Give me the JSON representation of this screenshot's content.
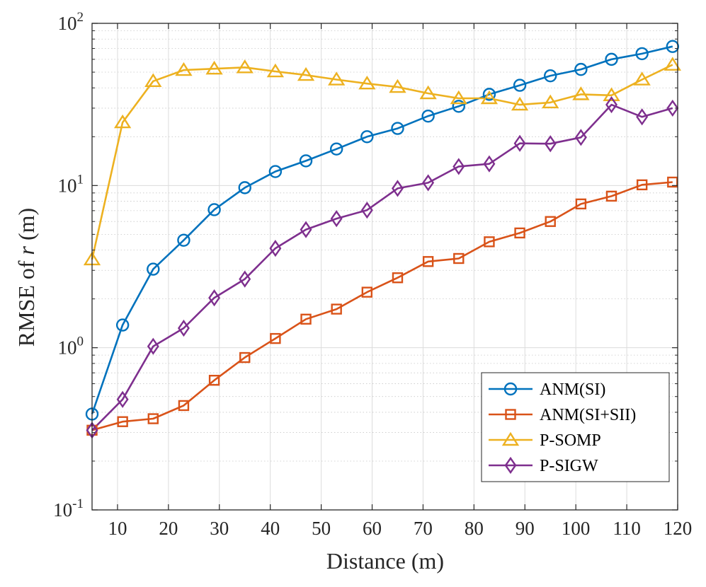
{
  "chart_data": {
    "type": "line",
    "title": "",
    "xlabel": "Distance (m)",
    "ylabel": {
      "prefix": "RMSE of ",
      "variable": "r",
      "suffix": " (m)"
    },
    "xlim": [
      5,
      120
    ],
    "ylim": [
      0.1,
      100
    ],
    "yscale": "log",
    "grid": true,
    "legend_position": "bottom-right",
    "x_ticks": [
      10,
      20,
      30,
      40,
      50,
      60,
      70,
      80,
      90,
      100,
      110,
      120
    ],
    "y_ticks": [
      {
        "value": 0.1,
        "base": "10",
        "exp": "-1"
      },
      {
        "value": 1,
        "base": "10",
        "exp": "0"
      },
      {
        "value": 10,
        "base": "10",
        "exp": "1"
      },
      {
        "value": 100,
        "base": "10",
        "exp": "2"
      }
    ],
    "x": [
      5,
      11,
      17,
      23,
      29,
      35,
      41,
      47,
      53,
      59,
      65,
      71,
      77,
      83,
      89,
      95,
      101,
      107,
      113,
      119
    ],
    "series": [
      {
        "name": "ANM(SI)",
        "color": "#0072BD",
        "marker": "circle",
        "values": [
          0.39,
          1.38,
          3.05,
          4.6,
          7.1,
          9.7,
          12.2,
          14.2,
          16.8,
          20.0,
          22.5,
          26.8,
          30.8,
          36.5,
          41.5,
          47.5,
          52.0,
          60.0,
          65.0,
          72.0
        ]
      },
      {
        "name": "ANM(SI+SII)",
        "color": "#D95319",
        "marker": "square",
        "values": [
          0.31,
          0.35,
          0.365,
          0.44,
          0.63,
          0.87,
          1.14,
          1.5,
          1.73,
          2.2,
          2.7,
          3.4,
          3.55,
          4.5,
          5.1,
          6.0,
          7.7,
          8.6,
          10.1,
          10.5
        ]
      },
      {
        "name": "P-SOMP",
        "color": "#EDB120",
        "marker": "triangle",
        "values": [
          3.5,
          24.5,
          44.0,
          51.5,
          52.5,
          53.5,
          50.5,
          48.0,
          45.0,
          42.5,
          40.5,
          37.0,
          34.5,
          34.5,
          31.5,
          32.5,
          36.5,
          36.0,
          45.0,
          55.5
        ]
      },
      {
        "name": "P-SIGW",
        "color": "#7E2F8E",
        "marker": "diamond",
        "values": [
          0.31,
          0.48,
          1.02,
          1.32,
          2.03,
          2.65,
          4.1,
          5.35,
          6.25,
          7.05,
          9.6,
          10.4,
          13.1,
          13.6,
          18.2,
          18.1,
          19.8,
          31.5,
          26.5,
          30.0
        ]
      }
    ]
  }
}
